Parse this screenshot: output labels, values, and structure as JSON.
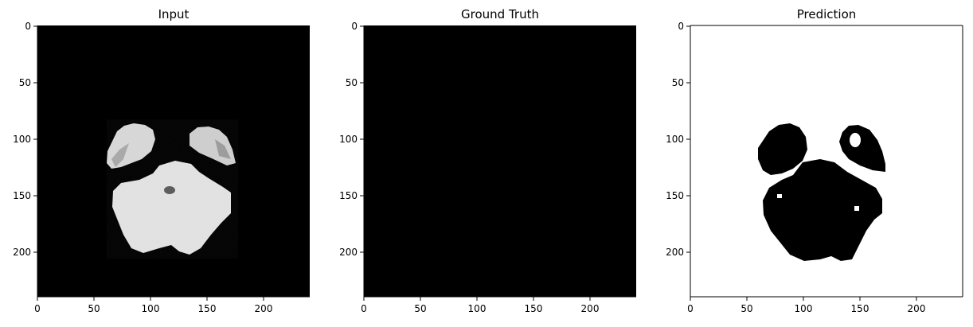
{
  "panels": [
    {
      "title": "Input",
      "xticks": [
        "0",
        "50",
        "100",
        "150",
        "200"
      ],
      "yticks": [
        "0",
        "50",
        "100",
        "150",
        "200"
      ],
      "content": "grayscale brain MRI slice on black background"
    },
    {
      "title": "Ground Truth",
      "xticks": [
        "0",
        "50",
        "100",
        "150",
        "200"
      ],
      "yticks": [
        "0",
        "50",
        "100",
        "150",
        "200"
      ],
      "content": "all-black mask"
    },
    {
      "title": "Prediction",
      "xticks": [
        "0",
        "50",
        "100",
        "150",
        "200"
      ],
      "yticks": [
        "0",
        "50",
        "100",
        "150",
        "200"
      ],
      "content": "black segmentation shapes on white background"
    }
  ],
  "axis_range": [
    0,
    240
  ]
}
